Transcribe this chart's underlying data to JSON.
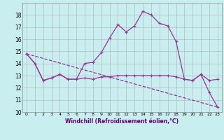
{
  "xlabel": "Windchill (Refroidissement éolien,°C)",
  "background_color": "#c8eef0",
  "grid_color": "#b0b0b0",
  "line_color": "#993399",
  "xlim": [
    -0.5,
    23.5
  ],
  "ylim": [
    10,
    19
  ],
  "yticks": [
    10,
    11,
    12,
    13,
    14,
    15,
    16,
    17,
    18
  ],
  "xticks": [
    0,
    1,
    2,
    3,
    4,
    5,
    6,
    7,
    8,
    9,
    10,
    11,
    12,
    13,
    14,
    15,
    16,
    17,
    18,
    19,
    20,
    21,
    22,
    23
  ],
  "series1_x": [
    0,
    1,
    2,
    3,
    4,
    5,
    6,
    7,
    8,
    9,
    10,
    11,
    12,
    13,
    14,
    15,
    16,
    17,
    18,
    19,
    20,
    21,
    22,
    23
  ],
  "series1_y": [
    14.8,
    14.0,
    12.6,
    12.8,
    13.1,
    12.7,
    12.7,
    14.0,
    14.1,
    14.9,
    16.1,
    17.2,
    16.6,
    17.1,
    18.3,
    18.0,
    17.3,
    17.1,
    15.8,
    12.7,
    12.6,
    13.1,
    11.6,
    10.4
  ],
  "series2_x": [
    0,
    1,
    2,
    3,
    4,
    5,
    6,
    7,
    8,
    9,
    10,
    11,
    12,
    13,
    14,
    15,
    16,
    17,
    18,
    19,
    20,
    21,
    22,
    23
  ],
  "series2_y": [
    14.8,
    14.0,
    12.6,
    12.8,
    13.1,
    12.7,
    12.7,
    12.8,
    12.7,
    12.9,
    12.9,
    13.0,
    13.0,
    13.0,
    13.0,
    13.0,
    13.0,
    13.0,
    12.9,
    12.7,
    12.6,
    13.1,
    12.6,
    12.7
  ],
  "series3_x": [
    0,
    23
  ],
  "series3_y": [
    14.8,
    10.4
  ]
}
